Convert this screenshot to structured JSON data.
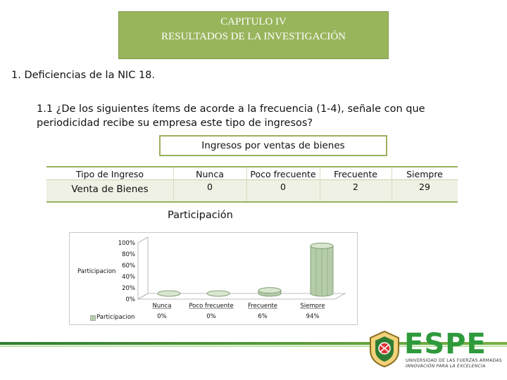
{
  "header": {
    "line1": "CAPITULO IV",
    "line2": "RESULTADOS DE LA INVESTIGACIÓN"
  },
  "section_heading": "1. Deficiencias de la NIC 18.",
  "question": {
    "line1": "1.1 ¿De los siguientes ítems de acorde a la frecuencia (1-4), señale con que",
    "line2": "periodicidad recibe su empresa este tipo de ingresos?"
  },
  "subtitle": "Ingresos por ventas de bienes",
  "table": {
    "headers": [
      "Tipo de Ingreso",
      "Nunca",
      "Poco frecuente",
      "Frecuente",
      "Siempre"
    ],
    "row": [
      "Venta de Bienes",
      "0",
      "0",
      "2",
      "29"
    ]
  },
  "chart_data": {
    "type": "bar",
    "title": "Participación",
    "categories": [
      "Nunca",
      "Poco frecuente",
      "Frecuente",
      "Siempre"
    ],
    "series": [
      {
        "name": "Participacion",
        "values": [
          0,
          0,
          6,
          94
        ]
      }
    ],
    "value_labels": [
      "0%",
      "0%",
      "6%",
      "94%"
    ],
    "y_ticks": [
      "100%",
      "80%",
      "60%",
      "40%",
      "20%",
      "0%"
    ],
    "ylabel": "Participacion",
    "ylim": [
      0,
      100
    ],
    "legend": "bottom-left",
    "legend_label": "Participacion",
    "grid": false,
    "colors": {
      "bar": "#b5ccaa",
      "bar_edge": "#6f8f5f",
      "bar_top": "#d8e5cf"
    }
  },
  "logo": {
    "name": "ESPE",
    "line1": "UNIVERSIDAD DE LAS FUERZAS ARMADAS",
    "line2": "INNOVACIÓN PARA LA EXCELENCIA"
  }
}
